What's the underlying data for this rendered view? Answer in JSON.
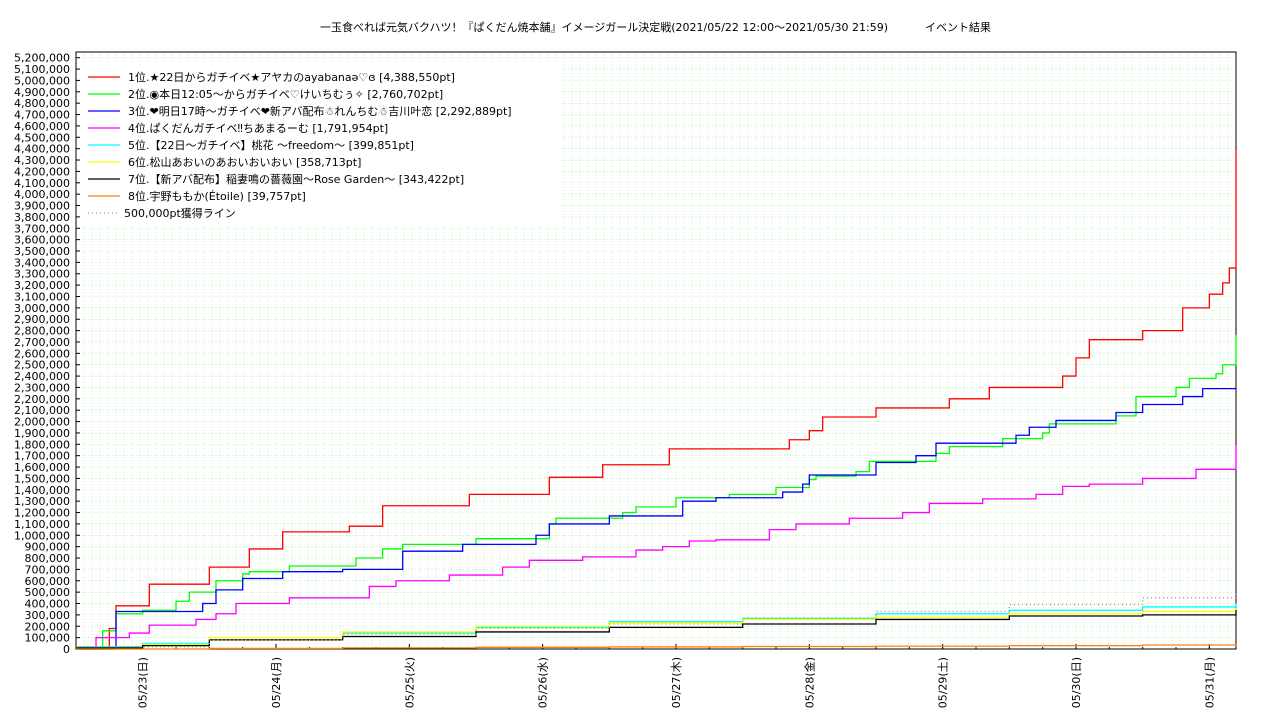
{
  "chart_data": {
    "type": "line",
    "title": "一玉食べれば元気バクハツ！『ぱくだん焼本舗』イメージガール決定戦(2021/05/22 12:00～2021/05/30 21:59)",
    "subtitle": "イベント結果",
    "xlabel": "",
    "ylabel": "",
    "x_range": [
      "2021-05-22T12:00",
      "2021-05-31T00:00"
    ],
    "ylim": [
      0,
      5250000
    ],
    "y_ticks": [
      "0",
      "100,000",
      "200,000",
      "300,000",
      "400,000",
      "500,000",
      "600,000",
      "700,000",
      "800,000",
      "900,000",
      "1,000,000",
      "1,100,000",
      "1,200,000",
      "1,300,000",
      "1,400,000",
      "1,500,000",
      "1,600,000",
      "1,700,000",
      "1,800,000",
      "1,900,000",
      "2,000,000",
      "2,100,000",
      "2,200,000",
      "2,300,000",
      "2,400,000",
      "2,500,000",
      "2,600,000",
      "2,700,000",
      "2,800,000",
      "2,900,000",
      "3,000,000",
      "3,100,000",
      "3,200,000",
      "3,300,000",
      "3,400,000",
      "3,500,000",
      "3,600,000",
      "3,700,000",
      "3,800,000",
      "3,900,000",
      "4,000,000",
      "4,100,000",
      "4,200,000",
      "4,300,000",
      "4,400,000",
      "4,500,000",
      "4,600,000",
      "4,700,000",
      "4,800,000",
      "4,900,000",
      "5,000,000",
      "5,100,000",
      "5,200,000"
    ],
    "x_ticks": [
      "05/23(日)",
      "05/24(月)",
      "05/25(火)",
      "05/26(水)",
      "05/27(木)",
      "05/28(金)",
      "05/29(土)",
      "05/30(日)",
      "05/31(月)"
    ],
    "grid": true,
    "legend_position": "top-left",
    "series": [
      {
        "name": "1位.★22日からガチイベ★アヤカのayabanaə♡ɞ [4,388,550pt]",
        "color": "#ff0000",
        "x": [
          0.0,
          0.15,
          0.25,
          0.3,
          0.5,
          0.55,
          0.95,
          1.0,
          1.25,
          1.3,
          1.5,
          1.55,
          2.0,
          2.05,
          2.25,
          2.3,
          2.85,
          2.95,
          3.05,
          3.1,
          3.5,
          3.55,
          3.9,
          3.95,
          4.35,
          4.45,
          4.55,
          4.65,
          4.75,
          4.8,
          5.3,
          5.35,
          5.45,
          5.5,
          5.55,
          5.6,
          5.95,
          6.0,
          6.5,
          6.55,
          6.8,
          6.85,
          7.3,
          7.4,
          7.45,
          7.5,
          7.55,
          7.6,
          7.95,
          8.0,
          8.25,
          8.3,
          8.45,
          8.5,
          8.55,
          8.6,
          8.65,
          8.7
        ],
        "y": [
          0,
          0,
          180000,
          380000,
          380000,
          570000,
          570000,
          720000,
          720000,
          880000,
          880000,
          1030000,
          1030000,
          1080000,
          1080000,
          1260000,
          1260000,
          1360000,
          1360000,
          1360000,
          1360000,
          1510000,
          1510000,
          1620000,
          1620000,
          1760000,
          1760000,
          1760000,
          1760000,
          1760000,
          1760000,
          1840000,
          1840000,
          1920000,
          1920000,
          2040000,
          2040000,
          2120000,
          2120000,
          2200000,
          2200000,
          2300000,
          2300000,
          2400000,
          2400000,
          2560000,
          2560000,
          2720000,
          2720000,
          2800000,
          2800000,
          3000000,
          3000000,
          3120000,
          3120000,
          3220000,
          3350000,
          4388550
        ]
      },
      {
        "name": "2位.◉本日12:05～からガチイベ♡けいちむぅ✧ [2,760,702pt]",
        "color": "#00ff00",
        "x": [
          0.0,
          0.15,
          0.2,
          0.25,
          0.3,
          0.5,
          0.6,
          0.75,
          0.85,
          1.0,
          1.05,
          1.25,
          1.3,
          1.5,
          1.6,
          2.0,
          2.1,
          2.3,
          2.45,
          2.9,
          3.0,
          3.5,
          3.55,
          3.6,
          3.95,
          4.1,
          4.2,
          4.45,
          4.5,
          4.9,
          5.0,
          5.25,
          5.35,
          5.5,
          5.55,
          5.85,
          5.95,
          6.45,
          6.55,
          6.85,
          6.95,
          7.2,
          7.25,
          7.3,
          7.75,
          7.8,
          7.95,
          8.0,
          8.2,
          8.25,
          8.3,
          8.35,
          8.45,
          8.55,
          8.6,
          8.7
        ],
        "y": [
          0,
          0,
          160000,
          160000,
          310000,
          340000,
          340000,
          420000,
          500000,
          500000,
          600000,
          660000,
          680000,
          680000,
          730000,
          730000,
          800000,
          880000,
          920000,
          920000,
          970000,
          970000,
          1100000,
          1150000,
          1150000,
          1200000,
          1250000,
          1250000,
          1330000,
          1360000,
          1360000,
          1420000,
          1420000,
          1490000,
          1520000,
          1560000,
          1650000,
          1720000,
          1780000,
          1780000,
          1850000,
          1850000,
          1900000,
          1980000,
          1980000,
          2050000,
          2220000,
          2220000,
          2220000,
          2300000,
          2300000,
          2380000,
          2380000,
          2420000,
          2500000,
          2760702
        ]
      },
      {
        "name": "3位.❤明日17時～ガチイベ❤新アバ配布☃れんちむ☃吉川叶恋 [2,292,889pt]",
        "color": "#0000ff",
        "x": [
          0.0,
          0.15,
          0.3,
          0.5,
          0.7,
          0.95,
          1.0,
          1.05,
          1.25,
          1.35,
          1.55,
          1.75,
          1.95,
          2.0,
          2.1,
          2.45,
          2.55,
          2.9,
          3.05,
          3.15,
          3.45,
          3.55,
          3.9,
          4.0,
          4.15,
          4.3,
          4.55,
          4.75,
          4.8,
          5.0,
          5.3,
          5.45,
          5.5,
          5.85,
          6.0,
          6.3,
          6.45,
          6.9,
          7.05,
          7.15,
          7.35,
          7.5,
          7.8,
          7.9,
          8.0,
          8.2,
          8.3,
          8.45,
          8.55,
          8.7
        ],
        "y": [
          0,
          0,
          330000,
          330000,
          330000,
          400000,
          400000,
          520000,
          620000,
          620000,
          680000,
          680000,
          680000,
          700000,
          700000,
          860000,
          860000,
          920000,
          920000,
          920000,
          1000000,
          1100000,
          1100000,
          1170000,
          1170000,
          1170000,
          1300000,
          1300000,
          1330000,
          1330000,
          1380000,
          1450000,
          1530000,
          1530000,
          1640000,
          1700000,
          1810000,
          1810000,
          1880000,
          1950000,
          2010000,
          2010000,
          2080000,
          2080000,
          2150000,
          2150000,
          2220000,
          2290000,
          2290000,
          2292889
        ]
      },
      {
        "name": "4位.ぱくだんガチイベ‼ちあまるーむ [1,791,954pt]",
        "color": "#ff00ff",
        "x": [
          0.0,
          0.15,
          0.25,
          0.4,
          0.55,
          0.9,
          1.05,
          1.2,
          1.4,
          1.6,
          1.8,
          2.0,
          2.2,
          2.4,
          2.6,
          2.8,
          3.0,
          3.2,
          3.4,
          3.6,
          3.8,
          4.0,
          4.2,
          4.4,
          4.6,
          4.8,
          5.0,
          5.2,
          5.4,
          5.6,
          5.8,
          6.0,
          6.2,
          6.4,
          6.6,
          6.8,
          7.0,
          7.2,
          7.4,
          7.6,
          7.8,
          8.0,
          8.2,
          8.4,
          8.55,
          8.7
        ],
        "y": [
          0,
          100000,
          100000,
          140000,
          210000,
          260000,
          310000,
          400000,
          400000,
          450000,
          450000,
          450000,
          550000,
          600000,
          600000,
          650000,
          650000,
          720000,
          780000,
          780000,
          810000,
          810000,
          870000,
          900000,
          950000,
          960000,
          960000,
          1050000,
          1100000,
          1100000,
          1150000,
          1150000,
          1200000,
          1280000,
          1280000,
          1320000,
          1320000,
          1360000,
          1430000,
          1450000,
          1450000,
          1500000,
          1500000,
          1580000,
          1580000,
          1791954
        ]
      },
      {
        "name": "5位.【22日～ガチイベ】桃花 ～freedom～ [399,851pt]",
        "color": "#00ffff",
        "x": [
          0.0,
          0.5,
          1.0,
          2.0,
          3.0,
          4.0,
          5.0,
          6.0,
          7.0,
          8.0,
          8.7
        ],
        "y": [
          20000,
          50000,
          80000,
          140000,
          190000,
          240000,
          270000,
          310000,
          340000,
          370000,
          399851
        ]
      },
      {
        "name": "6位.松山あおいのあおいおいおい [358,713pt]",
        "color": "#ffff00",
        "x": [
          0.0,
          0.5,
          1.0,
          2.0,
          3.0,
          4.0,
          5.0,
          6.0,
          7.0,
          8.0,
          8.7
        ],
        "y": [
          10000,
          40000,
          100000,
          150000,
          200000,
          230000,
          260000,
          280000,
          310000,
          330000,
          358713
        ]
      },
      {
        "name": "7位.【新アバ配布】稲妻鳴の薔薇園～Rose Garden～ [343,422pt]",
        "color": "#000000",
        "x": [
          0.0,
          0.5,
          1.0,
          2.0,
          3.0,
          4.0,
          5.0,
          6.0,
          7.0,
          8.0,
          8.7
        ],
        "y": [
          10000,
          30000,
          80000,
          110000,
          150000,
          190000,
          220000,
          260000,
          290000,
          300000,
          343422
        ]
      },
      {
        "name": "8位.宇野ももか(Étoile) [39,757pt]",
        "color": "#ff8000",
        "x": [
          0.0,
          1.0,
          2.0,
          3.0,
          4.0,
          5.0,
          6.0,
          7.0,
          8.0,
          8.7
        ],
        "y": [
          0,
          5000,
          10000,
          15000,
          18000,
          22000,
          25000,
          30000,
          35000,
          39757
        ]
      },
      {
        "name": "500,000pt獲得ライン",
        "color": "#c08080",
        "dashed": true,
        "x": [
          0.0,
          1.0,
          2.0,
          3.0,
          4.0,
          5.0,
          6.0,
          7.0,
          8.0,
          8.7
        ],
        "y": [
          20000,
          80000,
          130000,
          180000,
          220000,
          270000,
          330000,
          390000,
          450000,
          500000
        ]
      }
    ]
  }
}
